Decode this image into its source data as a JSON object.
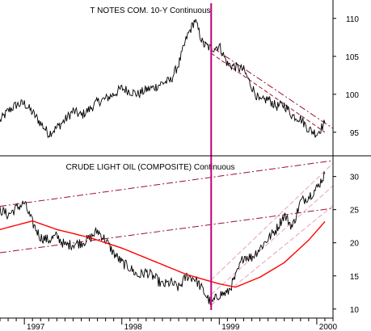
{
  "colors": {
    "background": "#ffffff",
    "price": "#000000",
    "moving_average": "#ff0000",
    "trend_line": "#9b1030",
    "channel_line": "#e8a0c0",
    "event_line": "#c0007a",
    "axis": "#000000"
  },
  "chart_data": [
    {
      "type": "line",
      "title": "T NOTES COM. 10-Y Continuous",
      "xlabel": "",
      "ylabel": "",
      "x_range": [
        "1996-10",
        "2000-03"
      ],
      "ylim": [
        92,
        112
      ],
      "y_ticks": [
        "95",
        "100",
        "105",
        "110"
      ],
      "grid": false,
      "series": [
        {
          "points": [
            [
              "1996-10",
              96.5
            ],
            [
              "1996-11",
              97.8
            ],
            [
              "1996-12",
              98.6
            ],
            [
              "1997-01",
              98.8
            ],
            [
              "1997-02",
              97.6
            ],
            [
              "1997-03",
              96.2
            ],
            [
              "1997-04",
              94.8
            ],
            [
              "1997-05",
              95.6
            ],
            [
              "1997-06",
              96.6
            ],
            [
              "1997-07",
              97.8
            ],
            [
              "1997-08",
              97.2
            ],
            [
              "1997-09",
              98.0
            ],
            [
              "1997-10",
              99.0
            ],
            [
              "1997-11",
              99.4
            ],
            [
              "1997-12",
              100.0
            ],
            [
              "1998-01",
              100.8
            ],
            [
              "1998-02",
              100.4
            ],
            [
              "1998-03",
              100.0
            ],
            [
              "1998-04",
              100.6
            ],
            [
              "1998-05",
              100.9
            ],
            [
              "1998-06",
              101.5
            ],
            [
              "1998-07",
              101.8
            ],
            [
              "1998-08",
              104.0
            ],
            [
              "1998-09",
              107.5
            ],
            [
              "1998-10",
              109.8
            ],
            [
              "1998-11",
              106.6
            ],
            [
              "1998-12",
              106.0
            ],
            [
              "1999-01",
              106.4
            ],
            [
              "1999-02",
              104.0
            ],
            [
              "1999-03",
              103.6
            ],
            [
              "1999-04",
              103.2
            ],
            [
              "1999-05",
              101.0
            ],
            [
              "1999-06",
              99.0
            ],
            [
              "1999-07",
              99.4
            ],
            [
              "1999-08",
              98.4
            ],
            [
              "1999-09",
              98.6
            ],
            [
              "1999-10",
              97.2
            ],
            [
              "1999-11",
              96.8
            ],
            [
              "1999-12",
              95.4
            ],
            [
              "2000-01",
              94.8
            ],
            [
              "2000-02",
              96.2
            ]
          ]
        }
      ],
      "trend_lines": [
        {
          "style": "dash-dot",
          "from": [
            "1998-11",
            107.0
          ],
          "to": [
            "2000-03",
            95.5
          ]
        },
        {
          "style": "dash",
          "from": [
            "1998-12",
            105.4
          ],
          "to": [
            "2000-02",
            95.0
          ]
        }
      ]
    },
    {
      "type": "line",
      "title": "CRUDE LIGHT OIL (COMPOSITE) Continuous",
      "xlabel": "",
      "ylabel": "",
      "x_range": [
        "1996-10",
        "2000-03"
      ],
      "ylim": [
        9,
        33
      ],
      "y_ticks": [
        "10",
        "15",
        "20",
        "25",
        "30"
      ],
      "x_ticks": [
        "1997",
        "1998",
        "1999",
        "2000"
      ],
      "grid": false,
      "series": [
        {
          "points": [
            [
              "1996-10",
              25.0
            ],
            [
              "1996-11",
              24.2
            ],
            [
              "1996-12",
              25.2
            ],
            [
              "1997-01",
              26.0
            ],
            [
              "1997-02",
              23.0
            ],
            [
              "1997-03",
              20.8
            ],
            [
              "1997-04",
              20.4
            ],
            [
              "1997-05",
              21.0
            ],
            [
              "1997-06",
              19.6
            ],
            [
              "1997-07",
              19.8
            ],
            [
              "1997-08",
              20.0
            ],
            [
              "1997-09",
              20.6
            ],
            [
              "1997-10",
              21.8
            ],
            [
              "1997-11",
              20.4
            ],
            [
              "1997-12",
              18.4
            ],
            [
              "1998-01",
              17.0
            ],
            [
              "1998-02",
              16.2
            ],
            [
              "1998-03",
              15.0
            ],
            [
              "1998-04",
              15.6
            ],
            [
              "1998-05",
              14.8
            ],
            [
              "1998-06",
              13.6
            ],
            [
              "1998-07",
              14.0
            ],
            [
              "1998-08",
              13.2
            ],
            [
              "1998-09",
              15.0
            ],
            [
              "1998-10",
              14.6
            ],
            [
              "1998-11",
              12.8
            ],
            [
              "1998-12",
              10.8
            ],
            [
              "1999-01",
              12.2
            ],
            [
              "1999-02",
              12.4
            ],
            [
              "1999-03",
              14.8
            ],
            [
              "1999-04",
              18.0
            ],
            [
              "1999-05",
              17.8
            ],
            [
              "1999-06",
              19.2
            ],
            [
              "1999-07",
              20.6
            ],
            [
              "1999-08",
              22.0
            ],
            [
              "1999-09",
              24.2
            ],
            [
              "1999-10",
              22.4
            ],
            [
              "1999-11",
              26.2
            ],
            [
              "1999-12",
              27.0
            ],
            [
              "2000-01",
              28.2
            ],
            [
              "2000-02",
              30.4
            ]
          ]
        },
        {
          "kind": "moving_average",
          "points": [
            [
              "1996-10",
              22.0
            ],
            [
              "1997-02",
              23.3
            ],
            [
              "1997-05",
              22.0
            ],
            [
              "1997-09",
              20.8
            ],
            [
              "1998-01",
              19.2
            ],
            [
              "1998-05",
              17.2
            ],
            [
              "1998-09",
              15.2
            ],
            [
              "1999-01",
              13.8
            ],
            [
              "1999-03",
              13.3
            ],
            [
              "1999-06",
              14.8
            ],
            [
              "1999-09",
              17.0
            ],
            [
              "1999-12",
              20.4
            ],
            [
              "2000-02",
              23.2
            ]
          ]
        }
      ],
      "trend_lines": [
        {
          "style": "dash-dot",
          "from": [
            "1996-10",
            25.5
          ],
          "to": [
            "2000-03",
            32.4
          ]
        },
        {
          "style": "dash-dot",
          "from": [
            "1996-10",
            18.5
          ],
          "to": [
            "2000-03",
            25.2
          ]
        },
        {
          "style": "channel",
          "from": [
            "1998-12",
            14.4
          ],
          "to": [
            "2000-03",
            32.0
          ]
        },
        {
          "style": "channel",
          "from": [
            "1998-12",
            12.2
          ],
          "to": [
            "2000-03",
            28.6
          ]
        },
        {
          "style": "channel",
          "from": [
            "1998-12",
            10.6
          ],
          "to": [
            "2000-03",
            25.6
          ]
        }
      ]
    }
  ],
  "event_line": {
    "date": "1998-12"
  }
}
